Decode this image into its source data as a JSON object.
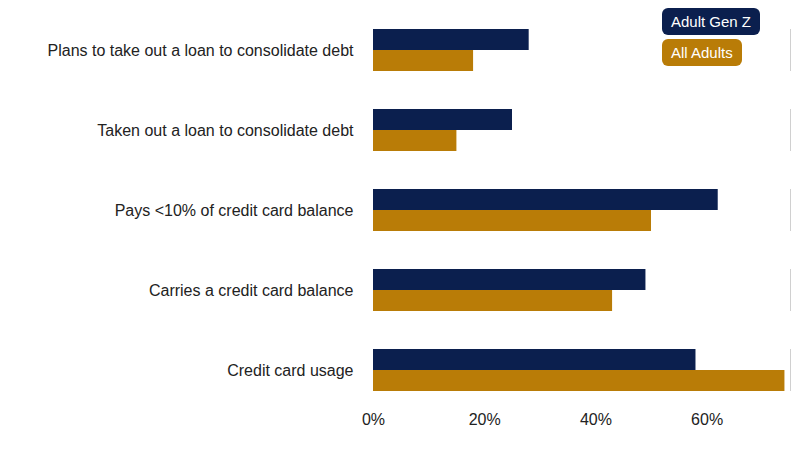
{
  "chart_data": {
    "type": "bar",
    "orientation": "horizontal",
    "categories": [
      "Plans to take out a loan to consolidate debt",
      "Taken out a loan to consolidate debt",
      "Pays <10% of credit card balance",
      "Carries a credit card balance",
      "Credit card usage"
    ],
    "series": [
      {
        "name": "Adult Gen Z",
        "color": "#0b1f4e",
        "values": [
          28,
          25,
          62,
          49,
          58
        ]
      },
      {
        "name": "All Adults",
        "color": "#b97c07",
        "values": [
          18,
          15,
          50,
          43,
          74
        ]
      }
    ],
    "xlim": [
      0,
      75
    ],
    "xticks": [
      {
        "value": 0,
        "label": "0%"
      },
      {
        "value": 20,
        "label": "20%"
      },
      {
        "value": 40,
        "label": "40%"
      },
      {
        "value": 60,
        "label": "60%"
      }
    ],
    "grid": false,
    "legend": "top-right"
  }
}
